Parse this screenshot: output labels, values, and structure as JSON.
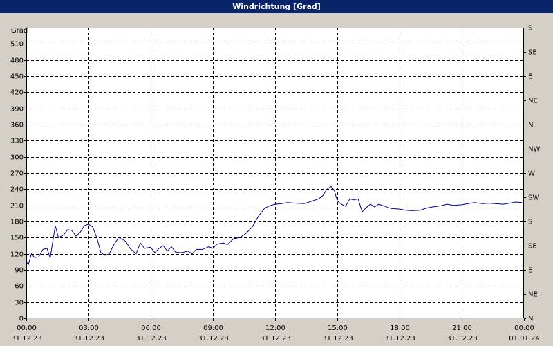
{
  "chart_data": {
    "type": "line",
    "title": "Windrichtung [Grad]",
    "y_label": "Grad",
    "color": "#00008b",
    "grid": true,
    "xlim": [
      0,
      24
    ],
    "xticks": [
      {
        "value": 0,
        "label": "00:00"
      },
      {
        "value": 3,
        "label": "03:00"
      },
      {
        "value": 6,
        "label": "06:00"
      },
      {
        "value": 9,
        "label": "09:00"
      },
      {
        "value": 12,
        "label": "12:00"
      },
      {
        "value": 15,
        "label": "15:00"
      },
      {
        "value": 18,
        "label": "18:00"
      },
      {
        "value": 21,
        "label": "21:00"
      },
      {
        "value": 24,
        "label": "00:00"
      }
    ],
    "xtick_dates": [
      "31.12.23",
      "31.12.23",
      "31.12.23",
      "31.12.23",
      "31.12.23",
      "31.12.23",
      "31.12.23",
      "31.12.23",
      "01.01.24"
    ],
    "ylim": [
      0,
      540
    ],
    "yticks": [
      0,
      30,
      60,
      90,
      120,
      150,
      180,
      210,
      240,
      270,
      300,
      330,
      360,
      390,
      420,
      450,
      480,
      510
    ],
    "y2lim": [
      0,
      540
    ],
    "y2ticks": [
      {
        "value": 0,
        "label": "N"
      },
      {
        "value": 45,
        "label": "NE"
      },
      {
        "value": 90,
        "label": "E"
      },
      {
        "value": 135,
        "label": "SE"
      },
      {
        "value": 180,
        "label": "S"
      },
      {
        "value": 225,
        "label": "SW"
      },
      {
        "value": 270,
        "label": "W"
      },
      {
        "value": 315,
        "label": "NW"
      },
      {
        "value": 360,
        "label": "N"
      },
      {
        "value": 405,
        "label": "NE"
      },
      {
        "value": 450,
        "label": "E"
      },
      {
        "value": 495,
        "label": "SE"
      },
      {
        "value": 540,
        "label": "S"
      }
    ],
    "x": [
      0,
      0.1,
      0.25,
      0.4,
      0.6,
      0.8,
      1.0,
      1.15,
      1.4,
      1.55,
      1.8,
      2.0,
      2.2,
      2.4,
      2.6,
      2.8,
      3.0,
      3.2,
      3.4,
      3.6,
      3.8,
      4.0,
      4.2,
      4.4,
      4.6,
      4.8,
      5.0,
      5.3,
      5.5,
      5.7,
      6.0,
      6.2,
      6.4,
      6.6,
      6.8,
      7.0,
      7.2,
      7.5,
      7.8,
      8.0,
      8.2,
      8.5,
      8.8,
      9.0,
      9.2,
      9.5,
      9.7,
      10.0,
      10.3,
      10.6,
      10.9,
      11.2,
      11.5,
      11.8,
      12.0,
      12.3,
      12.6,
      13.0,
      13.4,
      13.8,
      14.1,
      14.3,
      14.5,
      14.7,
      14.85,
      15.0,
      15.2,
      15.4,
      15.6,
      15.8,
      16.0,
      16.2,
      16.4,
      16.6,
      16.8,
      17.0,
      17.3,
      17.6,
      18.0,
      18.3,
      18.6,
      19.0,
      19.3,
      19.6,
      20.0,
      20.3,
      20.6,
      21.0,
      21.3,
      21.6,
      22.0,
      22.3,
      22.6,
      23.0,
      23.3,
      23.6,
      23.9
    ],
    "values": [
      105,
      100,
      120,
      113,
      114,
      128,
      130,
      112,
      172,
      150,
      155,
      165,
      163,
      153,
      160,
      172,
      175,
      170,
      150,
      122,
      117,
      120,
      135,
      147,
      148,
      143,
      130,
      120,
      140,
      130,
      132,
      122,
      130,
      135,
      125,
      133,
      123,
      122,
      125,
      120,
      128,
      128,
      133,
      130,
      138,
      140,
      137,
      148,
      150,
      158,
      170,
      190,
      205,
      210,
      212,
      213,
      215,
      214,
      213,
      218,
      222,
      228,
      240,
      245,
      238,
      218,
      212,
      208,
      222,
      220,
      222,
      198,
      206,
      212,
      207,
      212,
      208,
      204,
      203,
      201,
      200,
      201,
      205,
      207,
      209,
      212,
      210,
      211,
      213,
      215,
      213,
      214,
      213,
      212,
      214,
      216,
      215
    ]
  }
}
